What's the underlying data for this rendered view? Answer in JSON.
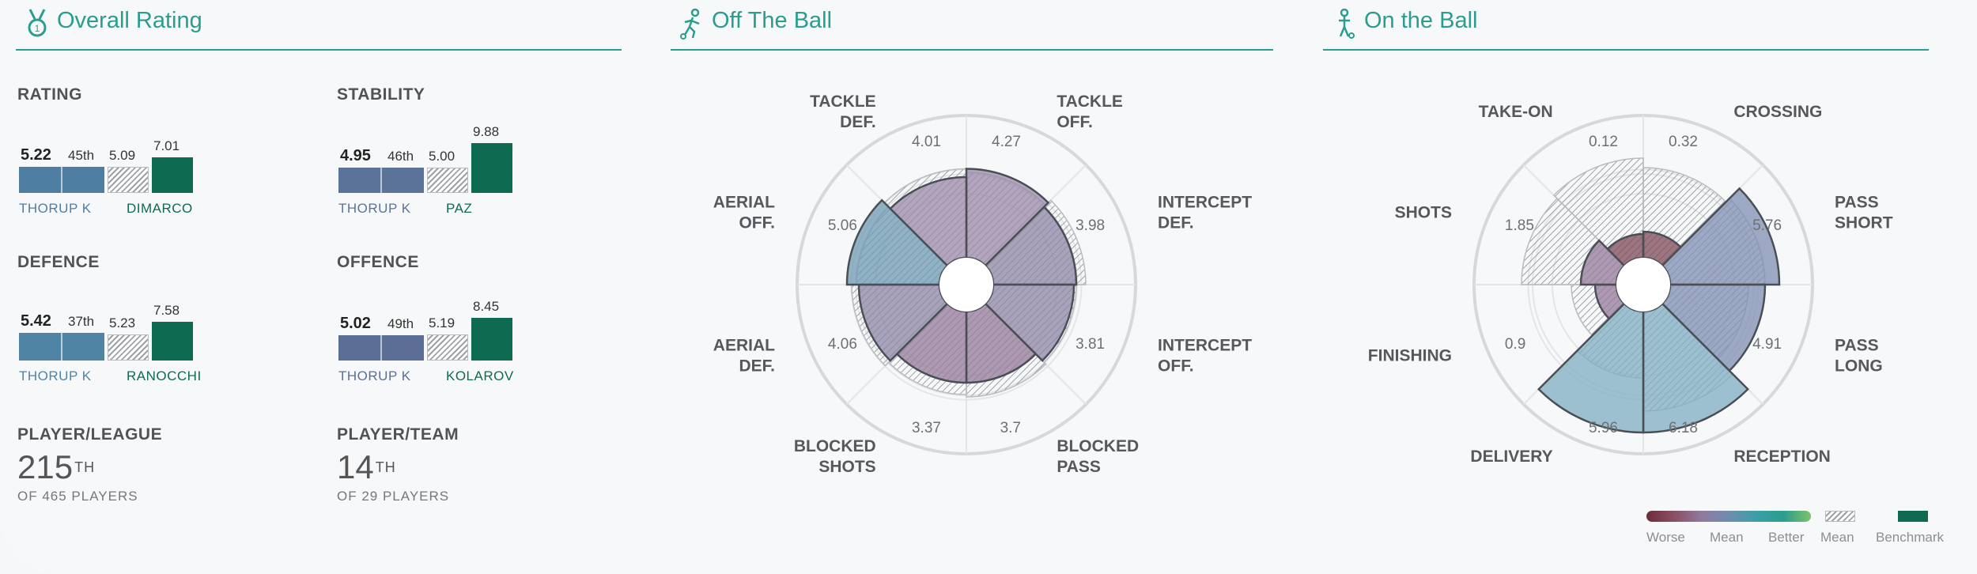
{
  "sections": {
    "overall": {
      "title": "Overall Rating",
      "icon": "medal-icon"
    },
    "off_ball": {
      "title": "Off The Ball",
      "icon": "player-running-icon"
    },
    "on_ball": {
      "title": "On the Ball",
      "icon": "player-dribbling-icon"
    }
  },
  "metrics": [
    {
      "label": "RATING",
      "player_value": "5.22",
      "rank": "45th",
      "mean_value": "5.09",
      "benchmark_value": "7.01",
      "player_name": "THORUP K",
      "benchmark_name": "DIMARCO",
      "player_color": "#4f7ea3",
      "benchmark_color": "#0f6a52"
    },
    {
      "label": "STABILITY",
      "player_value": "4.95",
      "rank": "46th",
      "mean_value": "5.00",
      "benchmark_value": "9.88",
      "player_name": "THORUP K",
      "benchmark_name": "PAZ",
      "player_color": "#5b7399",
      "benchmark_color": "#0f6a52"
    },
    {
      "label": "DEFENCE",
      "player_value": "5.42",
      "rank": "37th",
      "mean_value": "5.23",
      "benchmark_value": "7.58",
      "player_name": "THORUP K",
      "benchmark_name": "RANOCCHI",
      "player_color": "#4f84a5",
      "benchmark_color": "#0f6a52"
    },
    {
      "label": "OFFENCE",
      "player_value": "5.02",
      "rank": "49th",
      "mean_value": "5.19",
      "benchmark_value": "8.45",
      "player_name": "THORUP K",
      "benchmark_name": "KOLAROV",
      "player_color": "#5b6f96",
      "benchmark_color": "#0f6a52"
    }
  ],
  "ranks": {
    "league": {
      "label": "PLAYER/LEAGUE",
      "value": "215",
      "suffix": "TH",
      "sub": "OF 465 PLAYERS"
    },
    "team": {
      "label": "PLAYER/TEAM",
      "value": "14",
      "suffix": "TH",
      "sub": "OF 29 PLAYERS"
    }
  },
  "off_ball_chart": {
    "type": "radial-bar",
    "axes": [
      {
        "label": [
          "TACKLE",
          "OFF."
        ],
        "value": "4.27",
        "player": 0.75,
        "mean": 0.72,
        "color": "#9b8aa8"
      },
      {
        "label": [
          "INTERCEPT",
          "DEF."
        ],
        "value": "3.98",
        "player": 0.7,
        "mean": 0.78,
        "color": "#8e86a6"
      },
      {
        "label": [
          "INTERCEPT",
          "OFF."
        ],
        "value": "3.81",
        "player": 0.68,
        "mean": 0.7,
        "color": "#8e86a6"
      },
      {
        "label": [
          "BLOCKED",
          "PASS"
        ],
        "value": "3.7",
        "player": 0.6,
        "mean": 0.72,
        "color": "#96799a"
      },
      {
        "label": [
          "BLOCKED",
          "SHOTS"
        ],
        "value": "3.37",
        "player": 0.6,
        "mean": 0.7,
        "color": "#96799a"
      },
      {
        "label": [
          "AERIAL",
          "DEF."
        ],
        "value": "4.06",
        "player": 0.68,
        "mean": 0.74,
        "color": "#8e86a6"
      },
      {
        "label": [
          "AERIAL",
          "OFF."
        ],
        "value": "5.06",
        "player": 0.78,
        "mean": 0.7,
        "color": "#6f99b3"
      },
      {
        "label": [
          "TACKLE",
          "DEF."
        ],
        "value": "4.01",
        "player": 0.68,
        "mean": 0.75,
        "color": "#9b8aa8"
      }
    ]
  },
  "on_ball_chart": {
    "type": "radial-bar",
    "axes": [
      {
        "label": [
          "CROSSING"
        ],
        "value": "0.32",
        "player": 0.22,
        "mean": 0.76,
        "color": "#7d4a58"
      },
      {
        "label": [
          "PASS",
          "SHORT"
        ],
        "value": "5.76",
        "player": 0.92,
        "mean": 0.8,
        "color": "#7f8fb1"
      },
      {
        "label": [
          "PASS",
          "LONG"
        ],
        "value": "4.91",
        "player": 0.8,
        "mean": 0.66,
        "color": "#7f8fb1"
      },
      {
        "label": [
          "RECEPTION"
        ],
        "value": "6.18",
        "player": 1.02,
        "mean": 0.84,
        "color": "#7faec3"
      },
      {
        "label": [
          "DELIVERY"
        ],
        "value": "5.96",
        "player": 1.02,
        "mean": 0.56,
        "color": "#7faec3"
      },
      {
        "label": [
          "FINISHING"
        ],
        "value": "0.9",
        "player": 0.18,
        "mean": 0.38,
        "color": "#96799a"
      },
      {
        "label": [
          "SHOTS"
        ],
        "value": "1.85",
        "player": 0.3,
        "mean": 0.8,
        "color": "#96799a"
      },
      {
        "label": [
          "TAKE-ON"
        ],
        "value": "0.12",
        "player": 0.2,
        "mean": 0.84,
        "color": "#7d4a58"
      }
    ]
  },
  "legend": {
    "worse": "Worse",
    "mean": "Mean",
    "better": "Better",
    "hatch_mean": "Mean",
    "benchmark": "Benchmark",
    "gradient": [
      "#6b2d3a",
      "#8a4f63",
      "#8e7a9e",
      "#6f8cb0",
      "#3aa0a6",
      "#2a9d8f",
      "#7cc36a"
    ],
    "benchmark_color": "#0f6a52"
  }
}
